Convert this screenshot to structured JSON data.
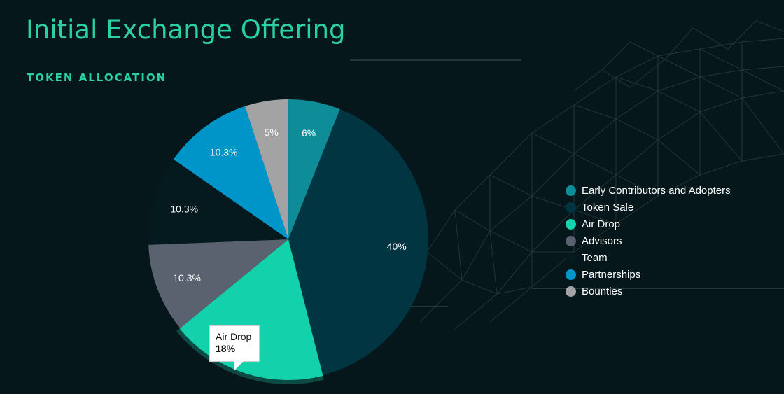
{
  "header": {
    "title": "Initial Exchange Offering",
    "subtitle": "TOKEN ALLOCATION"
  },
  "chart_data": {
    "type": "pie",
    "title": "",
    "categories": [
      "Early Contributors and Adopters",
      "Token Sale",
      "Air Drop",
      "Advisors",
      "Team",
      "Partnerships",
      "Bounties"
    ],
    "values": [
      6,
      40,
      18,
      10.3,
      10.3,
      10.3,
      5
    ],
    "data_labels": [
      "6%",
      "40%",
      "",
      "10.3%",
      "10.3%",
      "10.3%",
      "5%"
    ],
    "colors": [
      "#0e8c98",
      "#003541",
      "#13d1ab",
      "#5a6270",
      "#051a1f",
      "#0095c8",
      "#a3a3a3"
    ],
    "legend_position": "right",
    "highlighted": "Air Drop"
  },
  "tooltip": {
    "name": "Air Drop",
    "value": "18%"
  }
}
